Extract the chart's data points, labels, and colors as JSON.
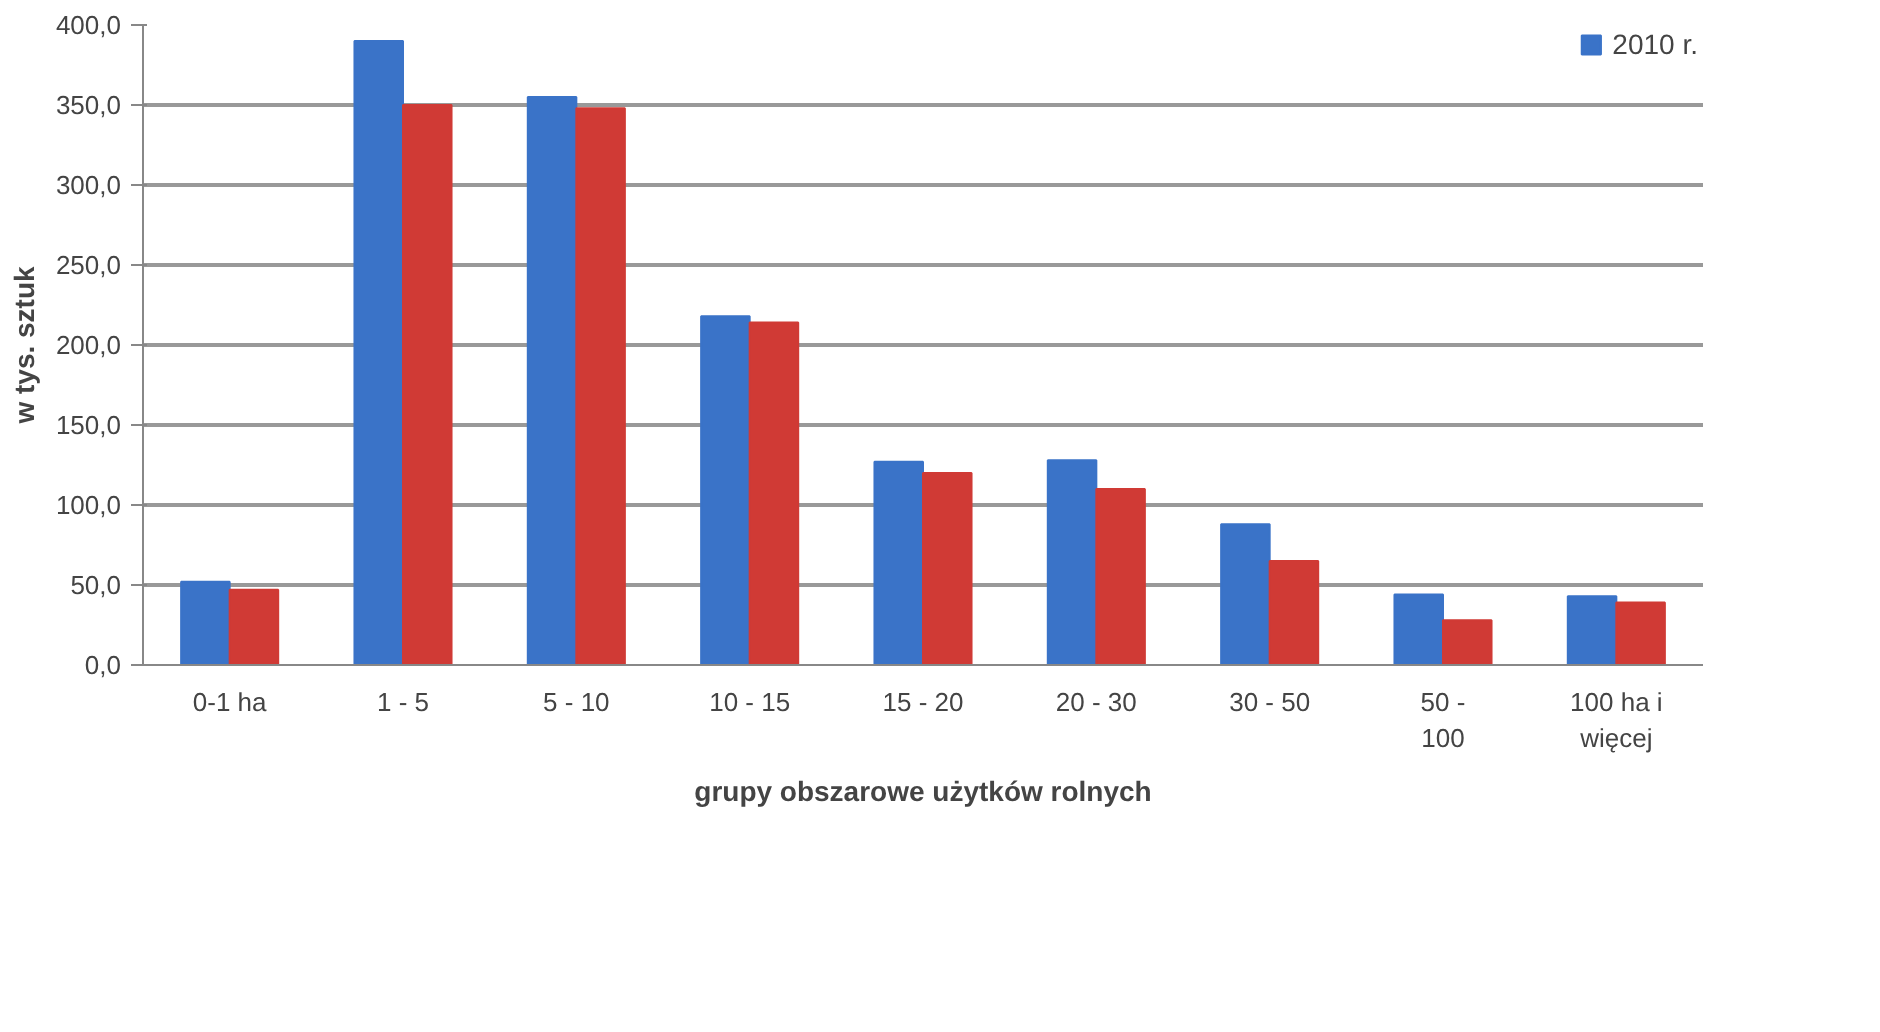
{
  "chart_data": {
    "type": "bar",
    "xlabel": "grupy obszarowe użytków rolnych",
    "ylabel": "w tys. sztuk",
    "categories": [
      "0-1 ha",
      "1 - 5",
      "5 - 10",
      "10 - 15",
      "15 - 20",
      "20 - 30",
      "30 - 50",
      "50 - 100",
      "100 ha i więcej"
    ],
    "series": [
      {
        "name": "2010 r.",
        "color": "#3a73c8",
        "values": [
          52,
          390,
          355,
          218,
          127,
          128,
          88,
          44,
          43
        ]
      },
      {
        "color": "#d03a35",
        "values": [
          47,
          350,
          348,
          214,
          120,
          110,
          65,
          28,
          39
        ]
      }
    ],
    "ylim": [
      0,
      400
    ],
    "yticks": [
      {
        "value": 0,
        "label": "0,0"
      },
      {
        "value": 50,
        "label": "50,0"
      },
      {
        "value": 100,
        "label": "100,0"
      },
      {
        "value": 150,
        "label": "150,0"
      },
      {
        "value": 200,
        "label": "200,0"
      },
      {
        "value": 250,
        "label": "250,0"
      },
      {
        "value": 300,
        "label": "300,0"
      },
      {
        "value": 350,
        "label": "350,0"
      },
      {
        "value": 400,
        "label": "400,0"
      }
    ],
    "grid": "y",
    "legend": "top right"
  }
}
